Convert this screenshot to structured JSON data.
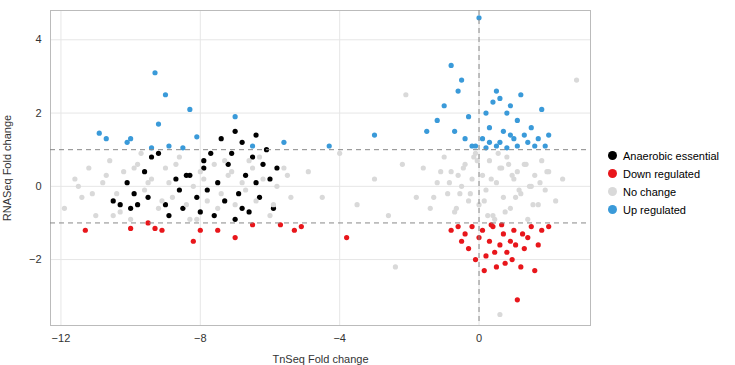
{
  "chart_data": {
    "type": "scatter",
    "x_label": "TnSeq Fold change",
    "y_label": "RNASeq Fold change",
    "xlim": [
      -12.3,
      3.2
    ],
    "ylim": [
      -3.8,
      4.8
    ],
    "xticks": [
      -12,
      -8,
      -4,
      0
    ],
    "yticks": [
      -2,
      0,
      2,
      4
    ],
    "grid": true,
    "legend": "right",
    "hlines": [
      -1,
      1
    ],
    "vlines": [
      0
    ],
    "series": [
      {
        "name": "Anaerobic essential",
        "color": "#000000",
        "x": [
          -10.5,
          -10.3,
          -10.1,
          -10.0,
          -9.8,
          -9.6,
          -9.5,
          -9.4,
          -9.2,
          -9.0,
          -8.9,
          -8.7,
          -8.5,
          -8.4,
          -8.3,
          -8.1,
          -8.0,
          -7.9,
          -7.8,
          -7.7,
          -7.6,
          -7.5,
          -7.4,
          -7.3,
          -7.2,
          -7.1,
          -7.0,
          -6.9,
          -6.8,
          -6.7,
          -6.6,
          -6.5,
          -6.4,
          -6.3,
          -6.2,
          -6.1,
          -6.0,
          -5.9,
          -5.8,
          -6.4,
          -7.0,
          -8.6,
          -9.9,
          -7.9,
          -6.8
        ],
        "y": [
          -0.4,
          -0.5,
          0.1,
          -0.6,
          -0.5,
          0.4,
          -0.3,
          0.8,
          0.9,
          -0.5,
          -0.8,
          0.2,
          -0.6,
          0.3,
          0.3,
          -0.3,
          -0.7,
          0.5,
          -0.1,
          0.9,
          -0.8,
          0.1,
          1.3,
          -0.4,
          0.6,
          0.9,
          1.5,
          -0.2,
          -0.6,
          0.3,
          -0.7,
          0.8,
          1.4,
          -0.3,
          0.6,
          1.0,
          0.2,
          -0.6,
          0.5,
          0.1,
          -0.9,
          -0.1,
          -0.2,
          0.7,
          1.2
        ]
      },
      {
        "name": "Down regulated",
        "color": "#e8161b",
        "x": [
          -11.3,
          -10.0,
          -9.5,
          -9.3,
          -9.1,
          -8.2,
          -8.0,
          -7.5,
          -7.0,
          -6.5,
          -5.7,
          -5.3,
          -5.1,
          -3.8,
          -0.6,
          -0.4,
          -0.3,
          -0.2,
          -0.1,
          0,
          0.1,
          0.2,
          0.3,
          0.4,
          0.5,
          0.6,
          0.7,
          0.8,
          0.9,
          1.0,
          1.1,
          1.2,
          1.3,
          1.4,
          1.5,
          1.6,
          1.7,
          1.8,
          2.0,
          -0.8,
          0.15,
          0.45,
          0.75,
          1.05,
          1.25,
          0.35,
          0.65,
          -0.5,
          0.95
        ],
        "y": [
          -1.2,
          -1.15,
          -1.0,
          -1.15,
          -1.2,
          -1.5,
          -1.2,
          -1.2,
          -1.4,
          -1.05,
          -1.05,
          -1.2,
          -1.1,
          -1.4,
          -1.1,
          -1.3,
          -1.7,
          -1.1,
          -2.0,
          -1.4,
          -1.2,
          -1.9,
          -1.5,
          -1.1,
          -2.2,
          -1.6,
          -1.3,
          -1.8,
          -1.5,
          -1.2,
          -3.1,
          -2.2,
          -1.7,
          -1.4,
          -1.1,
          -2.3,
          -1.6,
          -1.2,
          -1.1,
          -1.2,
          -2.3,
          -1.8,
          -2.1,
          -1.6,
          -1.3,
          -1.05,
          -1.05,
          -1.5,
          -2.0
        ]
      },
      {
        "name": "No change",
        "color": "#d9d9d9",
        "x": [
          -11.9,
          -11.6,
          -11.4,
          -11.2,
          -11.0,
          -10.8,
          -10.6,
          -10.4,
          -10.2,
          -10.0,
          -9.8,
          -9.6,
          -9.4,
          -9.2,
          -9.0,
          -8.8,
          -8.6,
          -8.4,
          -8.2,
          -8.0,
          -7.8,
          -7.6,
          -7.4,
          -7.2,
          -7.0,
          -6.8,
          -6.6,
          -6.4,
          -6.2,
          -6.0,
          -5.8,
          -5.6,
          -5.4,
          -11.1,
          -10.7,
          -10.3,
          -9.9,
          -9.5,
          -9.1,
          -8.7,
          -8.3,
          -7.9,
          -7.5,
          -7.1,
          -6.7,
          -6.3,
          -5.9,
          -5.5,
          -11.5,
          -10.5,
          -9.7,
          -8.9,
          -8.1,
          -7.3,
          -6.5,
          -4.9,
          -4.5,
          -4.0,
          -3.5,
          -3.0,
          -2.6,
          -2.2,
          -1.8,
          -1.6,
          -1.4,
          -1.2,
          -1.0,
          -0.9,
          -0.8,
          -0.7,
          -0.6,
          -0.5,
          -0.4,
          -0.3,
          -0.2,
          -0.1,
          0,
          0.1,
          0.2,
          0.3,
          0.4,
          0.5,
          0.6,
          0.7,
          0.8,
          0.9,
          1.0,
          1.1,
          1.2,
          1.3,
          1.4,
          1.5,
          1.6,
          1.7,
          1.8,
          1.9,
          2.0,
          2.2,
          2.4,
          -1.3,
          -1.1,
          -0.85,
          -0.65,
          -0.45,
          -0.25,
          -0.05,
          0.15,
          0.35,
          0.55,
          0.75,
          0.95,
          1.15,
          1.35,
          1.55,
          1.75,
          1.95,
          -0.55,
          -0.15,
          0.25,
          0.65,
          1.05,
          1.45,
          0.45,
          0.85,
          -2.1,
          -2.4,
          0.6,
          2.8
        ],
        "y": [
          -0.6,
          0.2,
          -0.3,
          0.5,
          -0.8,
          0.1,
          0.7,
          -0.2,
          0.4,
          -0.9,
          0.6,
          -0.1,
          0.2,
          -0.6,
          0.5,
          -0.3,
          0.8,
          -0.5,
          0.0,
          0.4,
          -0.4,
          0.6,
          -0.2,
          0.3,
          -0.5,
          0.1,
          0.7,
          -0.4,
          0.2,
          -0.8,
          0.0,
          0.5,
          -0.3,
          -0.2,
          0.3,
          -0.7,
          0.5,
          0.1,
          -0.4,
          0.6,
          -0.9,
          0.2,
          -0.6,
          0.4,
          -0.1,
          0.8,
          -0.5,
          0.3,
          0.0,
          -0.8,
          0.9,
          0.1,
          -0.9,
          0.7,
          0.5,
          0.4,
          -0.3,
          0.9,
          -0.5,
          0.2,
          -0.8,
          0.6,
          -0.3,
          0.5,
          -0.6,
          0.1,
          0.8,
          -0.2,
          0.4,
          -0.7,
          0.3,
          0.0,
          0.6,
          -0.4,
          0.2,
          0.9,
          -0.5,
          0.3,
          -0.1,
          0.7,
          -0.8,
          0.1,
          0.5,
          -0.3,
          0.8,
          -0.6,
          0.2,
          0.4,
          -0.2,
          0.6,
          -0.9,
          0.0,
          0.3,
          -0.5,
          0.7,
          -0.1,
          0.4,
          -0.4,
          0.2,
          -0.3,
          0.4,
          0.1,
          -0.6,
          0.5,
          -0.2,
          0.7,
          -0.4,
          0.2,
          0.9,
          -0.7,
          0.3,
          -0.1,
          0.6,
          -0.5,
          0.1,
          0.4,
          -0.2,
          0.8,
          -0.8,
          0.5,
          -0.3,
          0.0,
          -0.9,
          0.6,
          2.5,
          -2.2,
          -3.5,
          2.9
        ]
      },
      {
        "name": "Up regulated",
        "color": "#3a9ad9",
        "x": [
          -10.9,
          -10.7,
          -10.1,
          -10.0,
          -9.3,
          -9.0,
          -9.2,
          -9.4,
          -8.9,
          -8.3,
          -8.1,
          -8.5,
          -7.0,
          -6.5,
          -5.6,
          -4.3,
          -3.0,
          -1.2,
          -1.0,
          -0.8,
          -0.6,
          -0.5,
          -0.7,
          -0.4,
          -0.3,
          -0.2,
          0,
          0.1,
          0.2,
          0.3,
          0.4,
          0.5,
          0.6,
          0.7,
          0.8,
          0.9,
          1.0,
          1.1,
          1.2,
          1.3,
          1.4,
          1.5,
          1.7,
          1.8,
          2.0,
          1.9,
          0.2,
          0.5,
          0.8,
          1.1,
          -0.1,
          0.3,
          0.6,
          1.6,
          -1.5,
          0.9
        ],
        "y": [
          1.45,
          1.3,
          1.2,
          1.3,
          3.1,
          2.5,
          1.7,
          1.05,
          1.1,
          2.1,
          1.35,
          1.05,
          1.9,
          1.1,
          1.2,
          1.1,
          1.4,
          1.8,
          2.2,
          3.3,
          2.6,
          2.9,
          1.5,
          1.3,
          1.9,
          1.1,
          4.6,
          1.3,
          2.0,
          1.6,
          2.3,
          2.6,
          2.4,
          1.5,
          2.0,
          2.2,
          1.3,
          1.8,
          2.5,
          1.4,
          1.2,
          1.6,
          1.3,
          2.1,
          1.4,
          1.1,
          1.05,
          1.1,
          1.05,
          1.1,
          1.1,
          1.2,
          1.2,
          1.1,
          1.5,
          1.4
        ]
      }
    ]
  }
}
